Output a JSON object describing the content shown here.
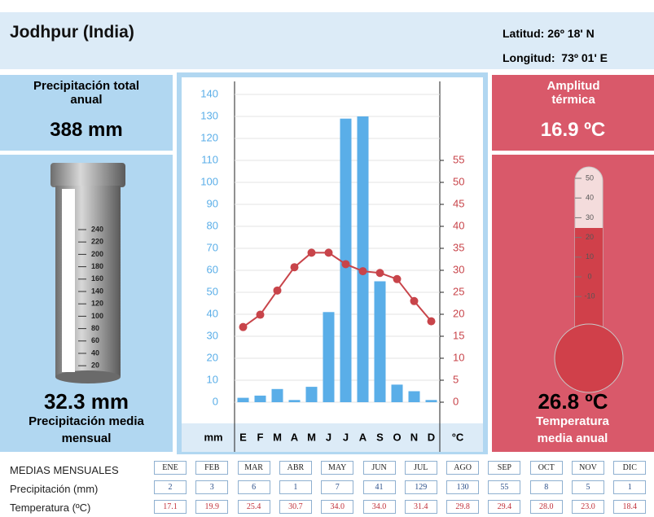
{
  "header": {
    "title": "Jodhpur (India)",
    "latitude": "Latitud: 26º 18' N",
    "longitude": "Longitud:  73º 01' E"
  },
  "precipitation_panel": {
    "label": "Precipitación total anual",
    "total": "388 mm",
    "gauge_ticks": [
      "240",
      "220",
      "200",
      "180",
      "160",
      "140",
      "120",
      "100",
      "80",
      "60",
      "40",
      "20"
    ],
    "monthly_mean": "32.3 mm",
    "monthly_mean_label": "Precipitación media mensual"
  },
  "temperature_panel": {
    "label": "Amplitud térmica",
    "range": "16.9 ºC",
    "thermometer_ticks": [
      "50",
      "40",
      "30",
      "20",
      "10",
      "0",
      "-10"
    ],
    "annual_mean": "26.8 ºC",
    "annual_mean_label": "Temperatura media anual"
  },
  "chart_data": {
    "type": "climograph",
    "categories": [
      "E",
      "F",
      "M",
      "A",
      "M",
      "J",
      "J",
      "A",
      "S",
      "O",
      "N",
      "D"
    ],
    "y_label": "mm",
    "y2_label": "°C",
    "series": [
      {
        "name": "Precipitación (mm)",
        "color": "#5aaee8",
        "values": [
          2,
          3,
          6,
          1,
          7,
          41,
          129,
          130,
          55,
          8,
          5,
          1
        ]
      },
      {
        "name": "Temperatura (ºC)",
        "color": "#c8444a",
        "axis": "y2",
        "values": [
          17.1,
          19.9,
          25.4,
          30.7,
          34.0,
          34.0,
          31.4,
          29.8,
          29.4,
          28.0,
          23.0,
          18.4
        ],
        "value_labels": [
          "17.1",
          "19.9",
          "25.4",
          "30.7",
          "34.0",
          "34.0",
          "31.4",
          "29.8",
          "29.4",
          "28.0",
          "23.0",
          "18.4"
        ]
      }
    ],
    "ylim": [
      -5,
      145
    ],
    "yticks": [
      0,
      10,
      20,
      30,
      40,
      50,
      60,
      70,
      80,
      90,
      100,
      110,
      120,
      130,
      140
    ],
    "y2lim": [
      -2.5,
      72.5
    ],
    "y2ticks": [
      0,
      5,
      10,
      15,
      20,
      25,
      30,
      35,
      40,
      45,
      50,
      55
    ],
    "grid": true
  },
  "table": {
    "title": "MEDIAS MENSUALES",
    "months": [
      "ENE",
      "FEB",
      "MAR",
      "ABR",
      "MAY",
      "JUN",
      "JUL",
      "AGO",
      "SEP",
      "OCT",
      "NOV",
      "DIC"
    ]
  }
}
